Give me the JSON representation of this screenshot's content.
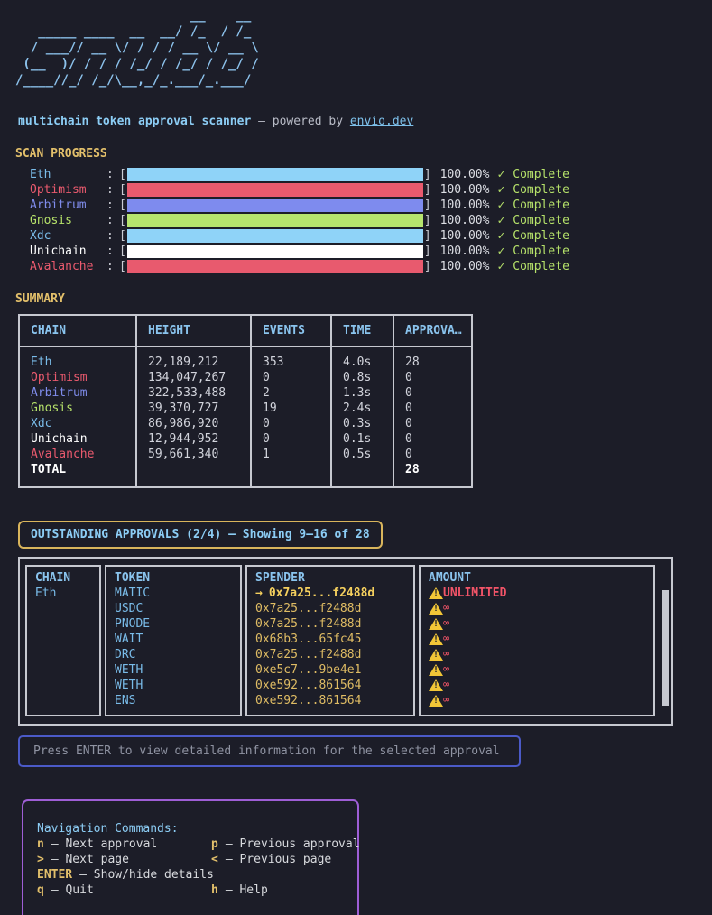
{
  "logo": {
    "text": "snubb",
    "ascii": "                       __    __\n   _____ ____  __  __/ /_  / /_\n  / ___// __ \\/ / / / __ \\/ __ \\\n (__  )/ / / / /_/ / /_/ / /_/ /\n/____//_/ /_/\\__,_/_.___/_.___/"
  },
  "header": {
    "title": "multichain token approval scanner",
    "powered_by": " — powered by ",
    "link": "envio.dev"
  },
  "colors": {
    "background": "#1c1d28",
    "accent_blue": "#8ac4ee",
    "accent_yellow": "#e3c06b",
    "red": "#ea5a6e",
    "indigo": "#7f8ceb",
    "green": "#b6e26a",
    "white": "#ffffff",
    "border_gray": "#c6c8d0",
    "border_gold": "#d9b55c",
    "border_blue": "#4b5ac8",
    "border_purple": "#9e5ed6",
    "warning_yellow": "#f2c637",
    "unlimited_red": "#f25468"
  },
  "scan_progress": {
    "heading": "SCAN PROGRESS",
    "colon": ":",
    "bracket_open": "[",
    "bracket_close": "]",
    "check": "✓",
    "chains": [
      {
        "name": "Eth",
        "percent": "100.00%",
        "status": "Complete",
        "bar_color": "#8fd3f8"
      },
      {
        "name": "Optimism",
        "percent": "100.00%",
        "status": "Complete",
        "bar_color": "#e85a6e"
      },
      {
        "name": "Arbitrum",
        "percent": "100.00%",
        "status": "Complete",
        "bar_color": "#7e8bee"
      },
      {
        "name": "Gnosis",
        "percent": "100.00%",
        "status": "Complete",
        "bar_color": "#b6e46e"
      },
      {
        "name": "Xdc",
        "percent": "100.00%",
        "status": "Complete",
        "bar_color": "#8fd3f8"
      },
      {
        "name": "Unichain",
        "percent": "100.00%",
        "status": "Complete",
        "bar_color": "#ffffff"
      },
      {
        "name": "Avalanche",
        "percent": "100.00%",
        "status": "Complete",
        "bar_color": "#e85a6e"
      }
    ]
  },
  "summary": {
    "heading": "SUMMARY",
    "columns": [
      "CHAIN",
      "HEIGHT",
      "EVENTS",
      "TIME",
      "APPROVA…"
    ],
    "rows": [
      {
        "chain": "Eth",
        "height": "22,189,212",
        "events": "353",
        "time": "4.0s",
        "approvals": "28"
      },
      {
        "chain": "Optimism",
        "height": "134,047,267",
        "events": "0",
        "time": "0.8s",
        "approvals": "0"
      },
      {
        "chain": "Arbitrum",
        "height": "322,533,488",
        "events": "2",
        "time": "1.3s",
        "approvals": "0"
      },
      {
        "chain": "Gnosis",
        "height": "39,370,727",
        "events": "19",
        "time": "2.4s",
        "approvals": "0"
      },
      {
        "chain": "Xdc",
        "height": "86,986,920",
        "events": "0",
        "time": "0.3s",
        "approvals": "0"
      },
      {
        "chain": "Unichain",
        "height": "12,944,952",
        "events": "0",
        "time": "0.1s",
        "approvals": "0"
      },
      {
        "chain": "Avalanche",
        "height": "59,661,340",
        "events": "1",
        "time": "0.5s",
        "approvals": "0"
      }
    ],
    "total": {
      "label": "TOTAL",
      "approvals": "28"
    }
  },
  "approvals": {
    "title": "OUTSTANDING APPROVALS (2/4) — Showing 9–16 of 28",
    "columns": [
      "CHAIN",
      "TOKEN",
      "SPENDER",
      "AMOUNT"
    ],
    "chain": "Eth",
    "selection_arrow": "→",
    "icons": {
      "warning": "warning-triangle-icon",
      "selection": "right-arrow-icon"
    },
    "rows": [
      {
        "token": "MATIC",
        "spender": "0x7a25...f2488d",
        "amount": "UNLIMITED",
        "selected": true
      },
      {
        "token": "USDC",
        "spender": "0x7a25...f2488d",
        "amount": "∞"
      },
      {
        "token": "PNODE",
        "spender": "0x7a25...f2488d",
        "amount": "∞"
      },
      {
        "token": "WAIT",
        "spender": "0x68b3...65fc45",
        "amount": "∞"
      },
      {
        "token": "DRC",
        "spender": "0x7a25...f2488d",
        "amount": "∞"
      },
      {
        "token": "WETH",
        "spender": "0xe5c7...9be4e1",
        "amount": "∞"
      },
      {
        "token": "WETH",
        "spender": "0xe592...861564",
        "amount": "∞"
      },
      {
        "token": "ENS",
        "spender": "0xe592...861564",
        "amount": "∞"
      }
    ]
  },
  "hint": {
    "text": "Press ENTER to view detailed information for the selected approval"
  },
  "nav": {
    "heading": "Navigation Commands:",
    "items": [
      {
        "key": "n",
        "desc": "— Next approval"
      },
      {
        "key": "p",
        "desc": "— Previous approval"
      },
      {
        "key": ">",
        "desc": "— Next page"
      },
      {
        "key": "<",
        "desc": "— Previous page"
      },
      {
        "key": "ENTER",
        "desc": "— Show/hide details"
      },
      {
        "key": "q",
        "desc": "— Quit"
      },
      {
        "key": "h",
        "desc": "— Help"
      }
    ]
  }
}
